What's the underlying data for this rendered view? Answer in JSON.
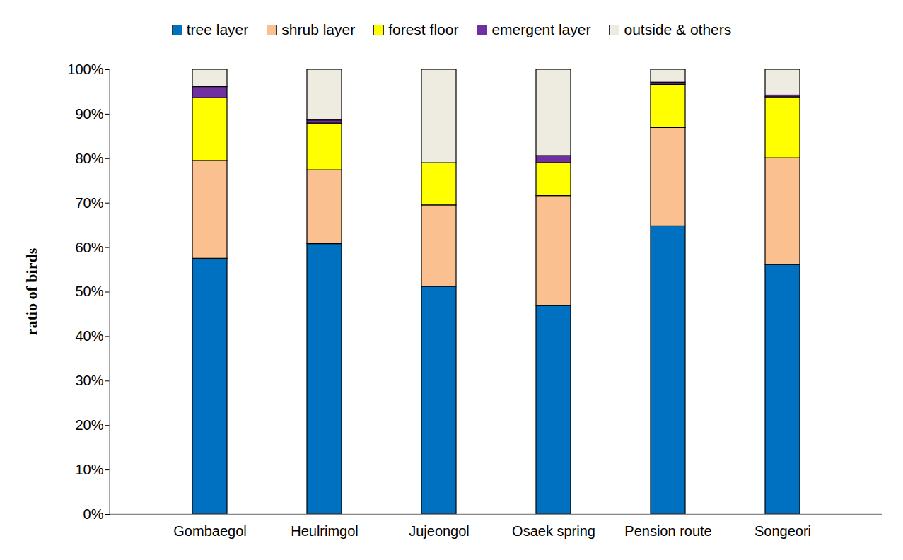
{
  "chart_data": {
    "type": "bar",
    "stacked": true,
    "ylabel": "ratio of birds",
    "categories": [
      "Gombaegol",
      "Heulrimgol",
      "Jujeongol",
      "Osaek spring",
      "Pension route",
      "Songeori"
    ],
    "series": [
      {
        "name": "tree layer",
        "color": "#0070C0",
        "values": [
          57.5,
          60.8,
          51.2,
          46.9,
          64.8,
          56.1
        ]
      },
      {
        "name": "shrub layer",
        "color": "#FAC090",
        "values": [
          22.0,
          16.6,
          18.3,
          24.7,
          22.1,
          24.0
        ]
      },
      {
        "name": "forest floor",
        "color": "#FFFF00",
        "values": [
          14.1,
          10.5,
          9.5,
          7.4,
          9.7,
          13.7
        ]
      },
      {
        "name": "emergent layer",
        "color": "#7030A0",
        "values": [
          2.5,
          0.7,
          0,
          1.6,
          0.5,
          0.4
        ]
      },
      {
        "name": "outside & others",
        "color": "#EEECE1",
        "values": [
          3.9,
          11.4,
          21.0,
          19.4,
          2.9,
          5.8
        ]
      }
    ],
    "ylim": [
      0,
      100
    ],
    "yticks": [
      {
        "value": 0,
        "label": "0%"
      },
      {
        "value": 10,
        "label": "10%"
      },
      {
        "value": 20,
        "label": "20%"
      },
      {
        "value": 30,
        "label": "30%"
      },
      {
        "value": 40,
        "label": "40%"
      },
      {
        "value": 50,
        "label": "50%"
      },
      {
        "value": 60,
        "label": "60%"
      },
      {
        "value": 70,
        "label": "70%"
      },
      {
        "value": 80,
        "label": "80%"
      },
      {
        "value": 90,
        "label": "90%"
      },
      {
        "value": 100,
        "label": "100%"
      }
    ],
    "legend": "top",
    "grid": false
  }
}
